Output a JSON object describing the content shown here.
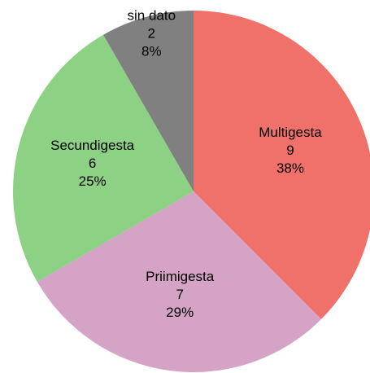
{
  "chart_data": {
    "type": "pie",
    "categories": [
      "Multigesta",
      "Priimigesta",
      "Secundigesta",
      "sin dato"
    ],
    "values": [
      9,
      7,
      6,
      2
    ],
    "percent_labels": [
      "38%",
      "29%",
      "25%",
      "8%"
    ],
    "colors": [
      "#f07169",
      "#d4a3c6",
      "#8dd184",
      "#808080"
    ]
  }
}
